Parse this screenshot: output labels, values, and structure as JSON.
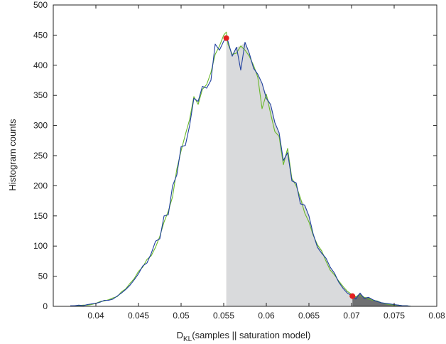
{
  "chart_data": {
    "type": "line",
    "xlabel_main": "D",
    "xlabel_subscript": "KL",
    "xlabel_rest": "(samples || saturation model)",
    "ylabel": "Histogram counts",
    "xlim": [
      0.035,
      0.08
    ],
    "ylim": [
      0,
      500
    ],
    "x_ticks": [
      0.04,
      0.045,
      0.05,
      0.055,
      0.06,
      0.065,
      0.07,
      0.075,
      0.08
    ],
    "x_tick_labels": [
      "0.04",
      "0.045",
      "0.05",
      "0.055",
      "0.06",
      "0.065",
      "0.07",
      "0.075",
      "0.08"
    ],
    "y_ticks": [
      0,
      50,
      100,
      150,
      200,
      250,
      300,
      350,
      400,
      450,
      500
    ],
    "y_tick_labels": [
      "0",
      "50",
      "100",
      "150",
      "200",
      "250",
      "300",
      "350",
      "400",
      "450",
      "500"
    ],
    "grid": false,
    "colors": {
      "blue": "#1f3f9f",
      "green": "#6ab82a",
      "shade_light": "#d9dadc",
      "shade_dark": "#6f7072",
      "marker": "#e32020",
      "axis": "#222222"
    },
    "shaded_regions": [
      {
        "from_x": 0.0553,
        "to_x": 0.0701,
        "shade": "light"
      },
      {
        "from_x": 0.0701,
        "to_x": 0.0762,
        "shade": "dark"
      }
    ],
    "markers": [
      {
        "x": 0.0553,
        "y": 445
      },
      {
        "x": 0.0701,
        "y": 17
      }
    ],
    "series": [
      {
        "color_key": "blue",
        "points": [
          [
            0.037,
            1
          ],
          [
            0.0375,
            1
          ],
          [
            0.038,
            2
          ],
          [
            0.0385,
            1
          ],
          [
            0.039,
            3
          ],
          [
            0.0395,
            4
          ],
          [
            0.04,
            5
          ],
          [
            0.0405,
            7
          ],
          [
            0.041,
            10
          ],
          [
            0.0415,
            10
          ],
          [
            0.042,
            12
          ],
          [
            0.0425,
            17
          ],
          [
            0.043,
            22
          ],
          [
            0.0435,
            28
          ],
          [
            0.044,
            35
          ],
          [
            0.0445,
            44
          ],
          [
            0.045,
            54
          ],
          [
            0.0455,
            67
          ],
          [
            0.046,
            72
          ],
          [
            0.0465,
            88
          ],
          [
            0.047,
            108
          ],
          [
            0.0475,
            112
          ],
          [
            0.048,
            150
          ],
          [
            0.0485,
            152
          ],
          [
            0.049,
            200
          ],
          [
            0.0495,
            218
          ],
          [
            0.05,
            265
          ],
          [
            0.0505,
            267
          ],
          [
            0.051,
            300
          ],
          [
            0.0515,
            345
          ],
          [
            0.052,
            340
          ],
          [
            0.0525,
            365
          ],
          [
            0.053,
            362
          ],
          [
            0.0535,
            375
          ],
          [
            0.054,
            435
          ],
          [
            0.0545,
            425
          ],
          [
            0.055,
            440
          ],
          [
            0.0553,
            445
          ],
          [
            0.0555,
            440
          ],
          [
            0.056,
            415
          ],
          [
            0.0565,
            430
          ],
          [
            0.057,
            392
          ],
          [
            0.0575,
            438
          ],
          [
            0.058,
            420
          ],
          [
            0.0585,
            395
          ],
          [
            0.059,
            385
          ],
          [
            0.0595,
            370
          ],
          [
            0.06,
            345
          ],
          [
            0.0605,
            335
          ],
          [
            0.061,
            305
          ],
          [
            0.0615,
            288
          ],
          [
            0.062,
            242
          ],
          [
            0.0625,
            255
          ],
          [
            0.063,
            208
          ],
          [
            0.0635,
            205
          ],
          [
            0.064,
            170
          ],
          [
            0.0645,
            168
          ],
          [
            0.065,
            150
          ],
          [
            0.0655,
            120
          ],
          [
            0.066,
            98
          ],
          [
            0.0665,
            88
          ],
          [
            0.067,
            80
          ],
          [
            0.0675,
            65
          ],
          [
            0.068,
            55
          ],
          [
            0.0685,
            40
          ],
          [
            0.069,
            30
          ],
          [
            0.0695,
            22
          ],
          [
            0.0701,
            17
          ],
          [
            0.0705,
            12
          ],
          [
            0.071,
            22
          ],
          [
            0.0715,
            13
          ],
          [
            0.072,
            15
          ],
          [
            0.0725,
            11
          ],
          [
            0.073,
            8
          ],
          [
            0.0735,
            6
          ],
          [
            0.074,
            5
          ],
          [
            0.0745,
            4
          ],
          [
            0.075,
            3
          ],
          [
            0.0755,
            2
          ],
          [
            0.076,
            1
          ],
          [
            0.0765,
            1
          ],
          [
            0.077,
            0
          ]
        ]
      },
      {
        "color_key": "green",
        "points": [
          [
            0.037,
            0
          ],
          [
            0.0375,
            1
          ],
          [
            0.038,
            1
          ],
          [
            0.0385,
            2
          ],
          [
            0.039,
            2
          ],
          [
            0.0395,
            3
          ],
          [
            0.04,
            5
          ],
          [
            0.0405,
            8
          ],
          [
            0.041,
            9
          ],
          [
            0.0415,
            11
          ],
          [
            0.042,
            14
          ],
          [
            0.0425,
            16
          ],
          [
            0.043,
            24
          ],
          [
            0.0435,
            29
          ],
          [
            0.044,
            38
          ],
          [
            0.0445,
            46
          ],
          [
            0.045,
            58
          ],
          [
            0.0455,
            65
          ],
          [
            0.046,
            78
          ],
          [
            0.0465,
            84
          ],
          [
            0.047,
            98
          ],
          [
            0.0475,
            116
          ],
          [
            0.048,
            140
          ],
          [
            0.0485,
            158
          ],
          [
            0.049,
            182
          ],
          [
            0.0495,
            228
          ],
          [
            0.05,
            258
          ],
          [
            0.0505,
            285
          ],
          [
            0.051,
            310
          ],
          [
            0.0515,
            348
          ],
          [
            0.052,
            335
          ],
          [
            0.0525,
            360
          ],
          [
            0.053,
            368
          ],
          [
            0.0535,
            388
          ],
          [
            0.054,
            418
          ],
          [
            0.0545,
            432
          ],
          [
            0.055,
            450
          ],
          [
            0.0553,
            455
          ],
          [
            0.0555,
            435
          ],
          [
            0.056,
            418
          ],
          [
            0.0565,
            420
          ],
          [
            0.057,
            432
          ],
          [
            0.0575,
            425
          ],
          [
            0.058,
            415
          ],
          [
            0.0585,
            400
          ],
          [
            0.059,
            380
          ],
          [
            0.0595,
            328
          ],
          [
            0.06,
            352
          ],
          [
            0.0605,
            320
          ],
          [
            0.061,
            290
          ],
          [
            0.0615,
            282
          ],
          [
            0.062,
            235
          ],
          [
            0.0625,
            262
          ],
          [
            0.063,
            212
          ],
          [
            0.0635,
            200
          ],
          [
            0.064,
            180
          ],
          [
            0.0645,
            155
          ],
          [
            0.065,
            140
          ],
          [
            0.0655,
            118
          ],
          [
            0.066,
            102
          ],
          [
            0.0665,
            92
          ],
          [
            0.067,
            75
          ],
          [
            0.0675,
            60
          ],
          [
            0.068,
            52
          ],
          [
            0.0685,
            42
          ],
          [
            0.069,
            33
          ],
          [
            0.0695,
            25
          ],
          [
            0.07,
            20
          ],
          [
            0.0705,
            16
          ],
          [
            0.071,
            18
          ],
          [
            0.0715,
            15
          ],
          [
            0.072,
            12
          ],
          [
            0.0725,
            10
          ],
          [
            0.073,
            9
          ],
          [
            0.0735,
            6
          ],
          [
            0.074,
            4
          ],
          [
            0.0745,
            3
          ],
          [
            0.075,
            2
          ],
          [
            0.0755,
            2
          ],
          [
            0.076,
            1
          ],
          [
            0.0765,
            1
          ],
          [
            0.077,
            0
          ]
        ]
      }
    ]
  }
}
